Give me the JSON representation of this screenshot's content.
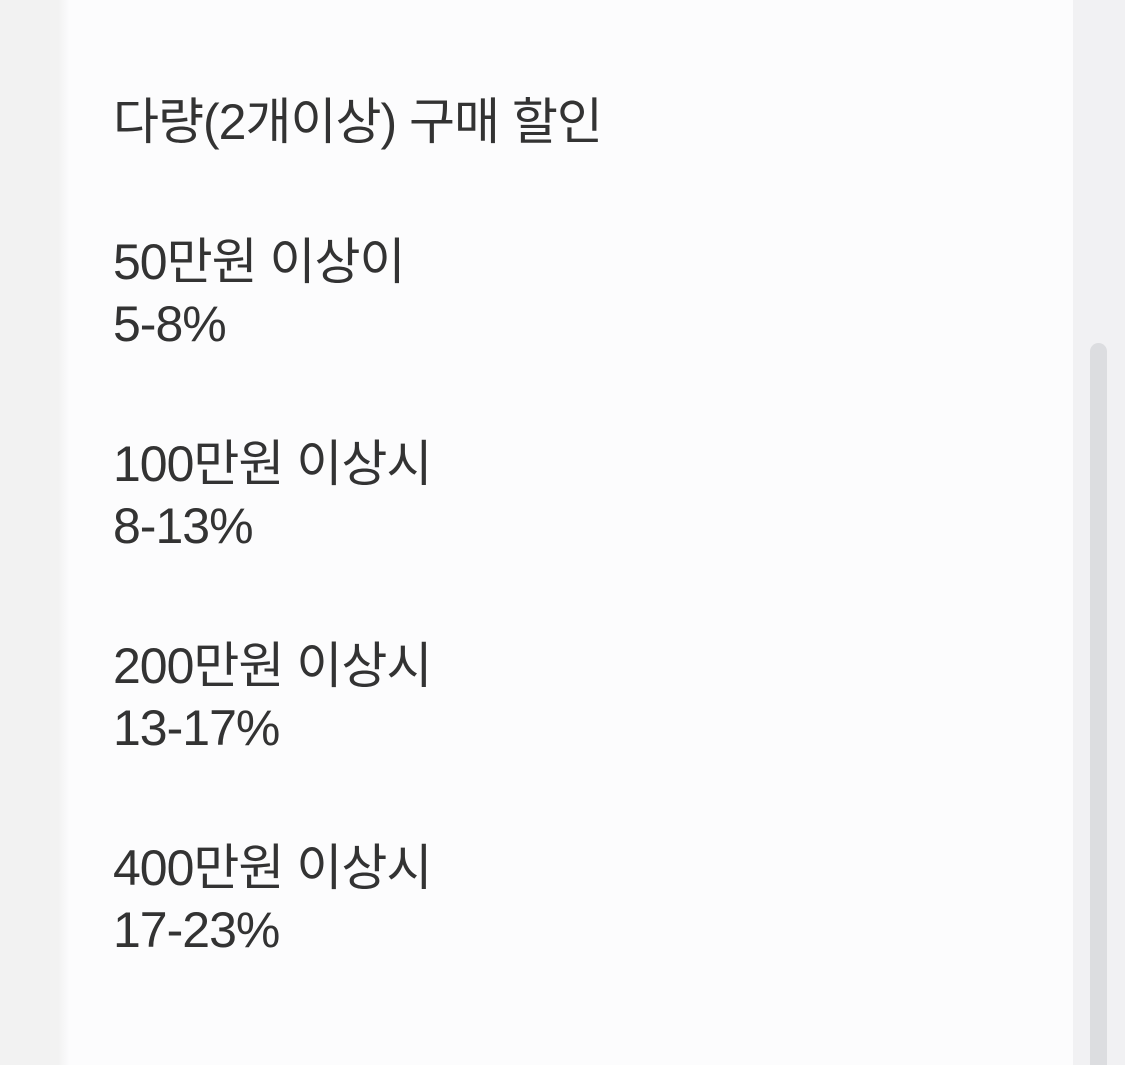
{
  "theme": {
    "content_bg": "#fcfcfd",
    "gutter_bg": "#f2f2f2",
    "text_color": "#333333",
    "track_bg": "#f1f1f3",
    "thumb_bg": "#dcdde0"
  },
  "content": {
    "title": "다량(2개이상) 구매 할인",
    "discount_tiers": [
      {
        "threshold": "50만원 이상이",
        "rate": "5-8%"
      },
      {
        "threshold": "100만원 이상시",
        "rate": "8-13%"
      },
      {
        "threshold": "200만원 이상시",
        "rate": "13-17%"
      },
      {
        "threshold": "400만원 이상시",
        "rate": "17-23%"
      }
    ]
  }
}
